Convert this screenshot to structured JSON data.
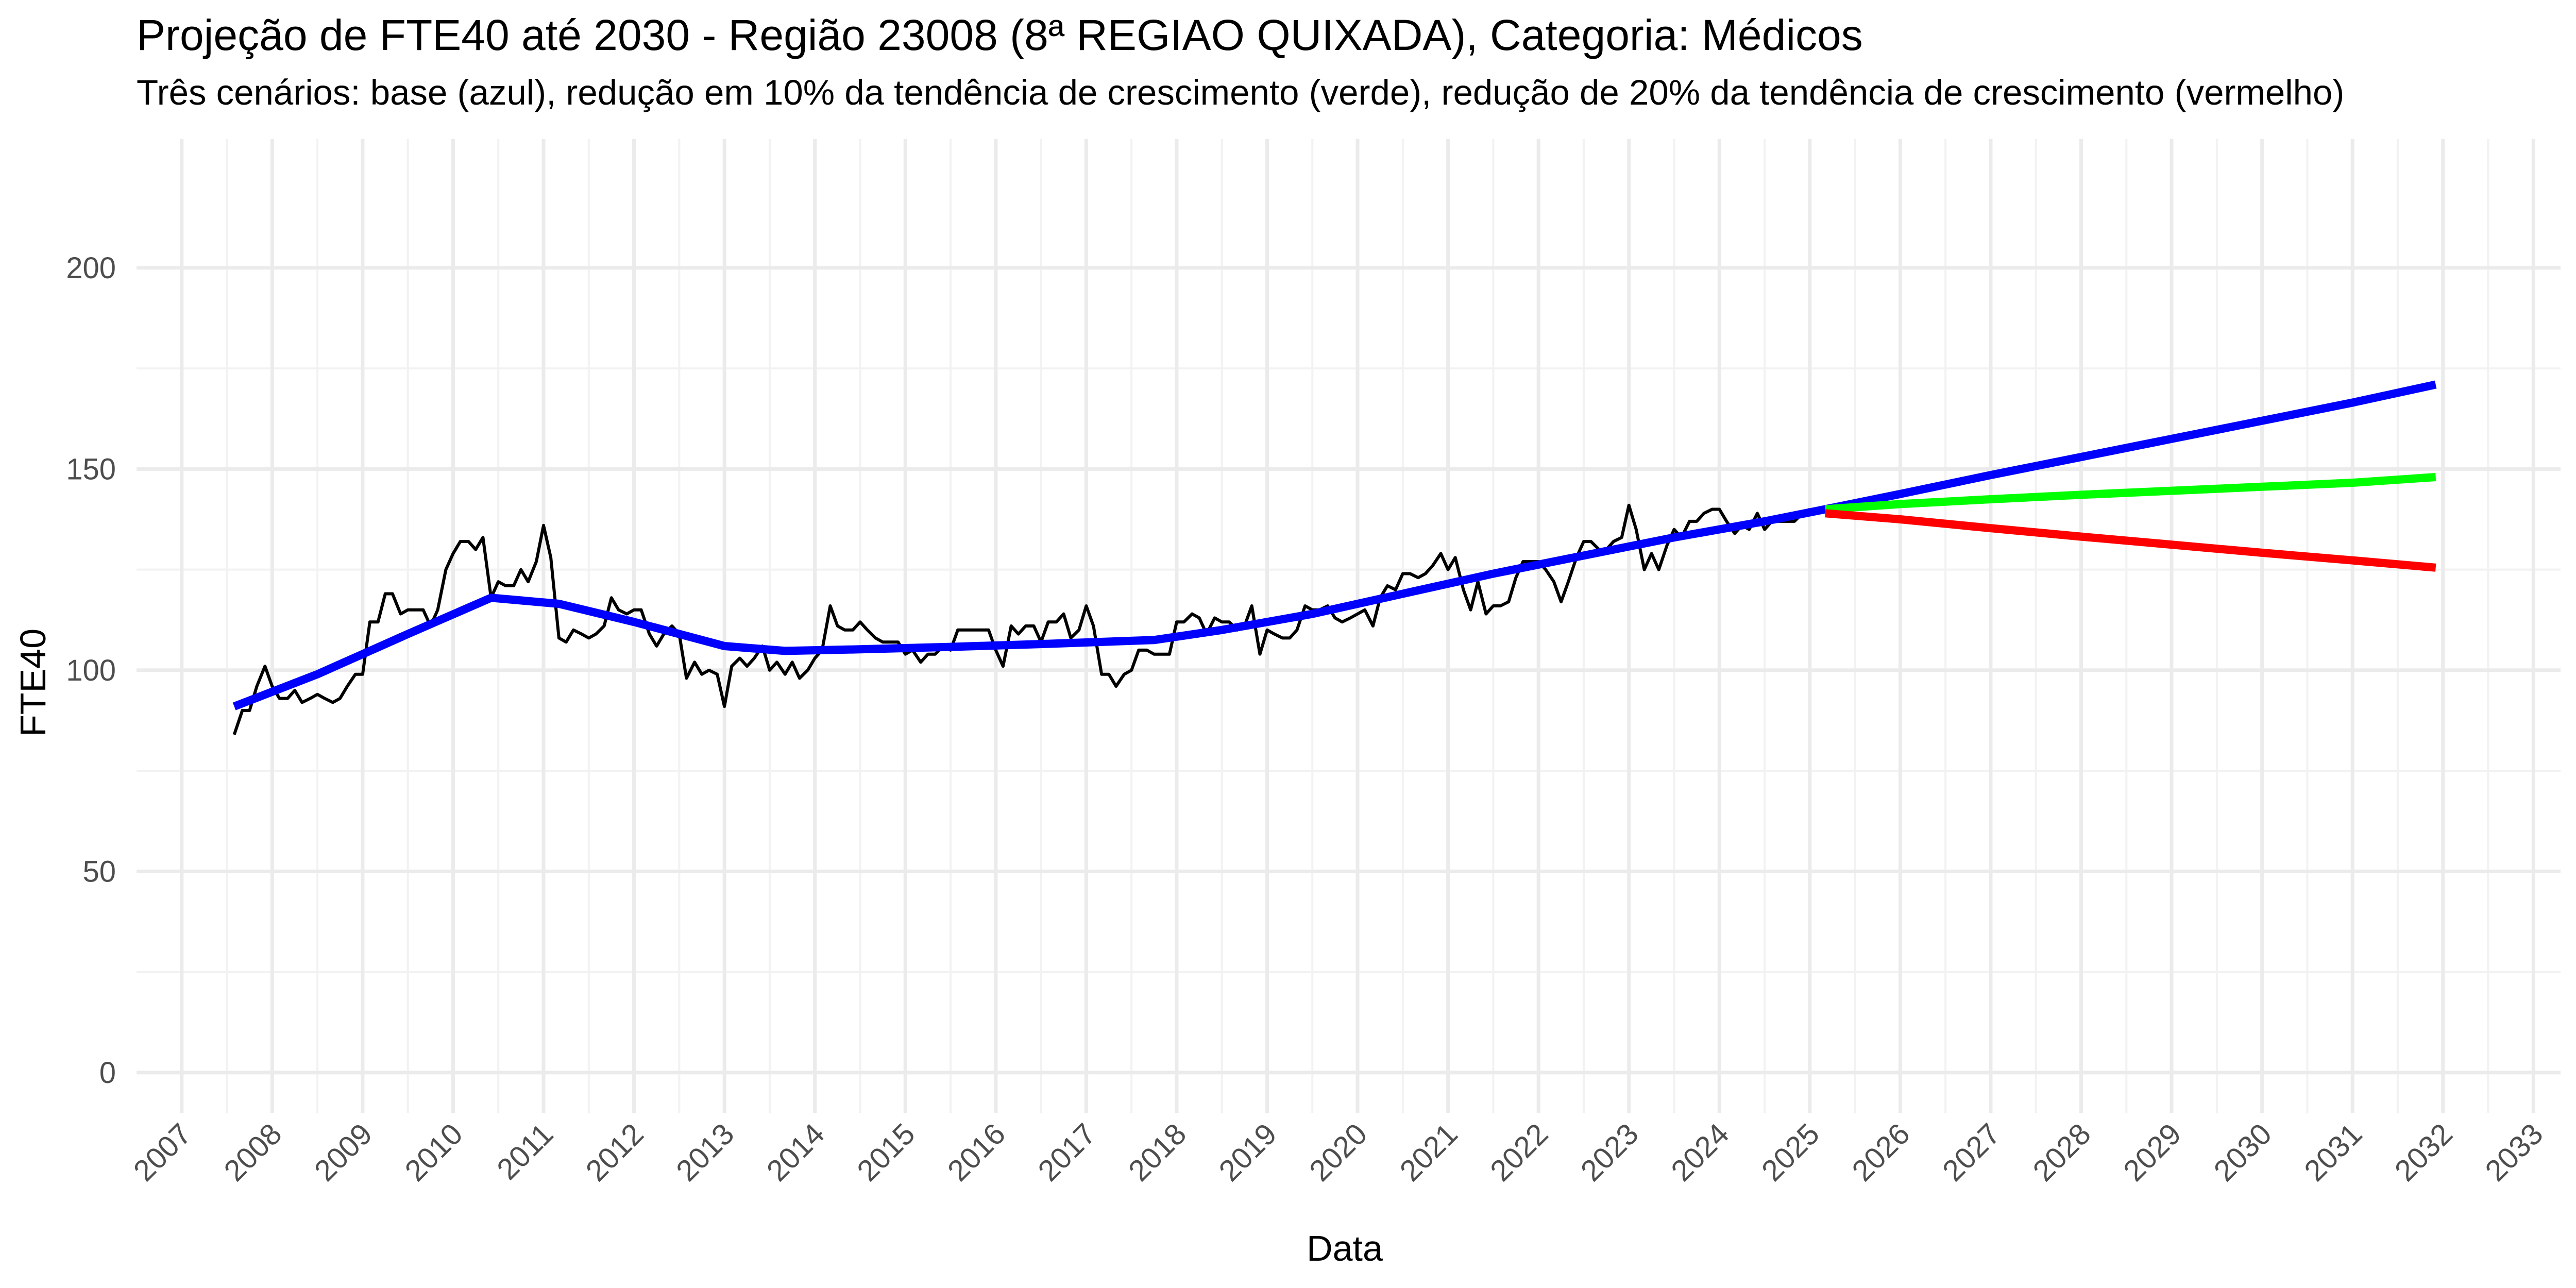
{
  "chart_data": {
    "type": "line",
    "title": "Projeção de FTE40 até 2030 - Região 23008 (8ª REGIAO QUIXADA), Categoria: Médicos",
    "subtitle": "Três cenários: base (azul), redução em 10% da tendência de crescimento (verde), redução de 20% da tendência de crescimento (vermelho)",
    "xlabel": "Data",
    "ylabel": "FTE40",
    "xlim": [
      2006.5,
      2033.3
    ],
    "ylim": [
      -10,
      232
    ],
    "x_ticks": [
      "2007",
      "2008",
      "2009",
      "2010",
      "2011",
      "2012",
      "2013",
      "2014",
      "2015",
      "2016",
      "2017",
      "2018",
      "2019",
      "2020",
      "2021",
      "2022",
      "2023",
      "2024",
      "2025",
      "2026",
      "2027",
      "2028",
      "2029",
      "2030",
      "2031",
      "2032",
      "2033"
    ],
    "y_ticks": [
      0,
      50,
      100,
      150,
      200
    ],
    "grid": true,
    "series": [
      {
        "color": "#000000",
        "points": [
          [
            2007.58,
            84
          ],
          [
            2007.67,
            90
          ],
          [
            2007.75,
            90
          ],
          [
            2007.83,
            96
          ],
          [
            2007.92,
            101
          ],
          [
            2008.0,
            96
          ],
          [
            2008.08,
            93
          ],
          [
            2008.17,
            93
          ],
          [
            2008.25,
            95
          ],
          [
            2008.33,
            92
          ],
          [
            2008.42,
            93
          ],
          [
            2008.5,
            94
          ],
          [
            2008.58,
            93
          ],
          [
            2008.67,
            92
          ],
          [
            2008.75,
            93
          ],
          [
            2008.83,
            96
          ],
          [
            2008.92,
            99
          ],
          [
            2009.0,
            99
          ],
          [
            2009.08,
            112
          ],
          [
            2009.17,
            112
          ],
          [
            2009.25,
            119
          ],
          [
            2009.33,
            119
          ],
          [
            2009.42,
            114
          ],
          [
            2009.5,
            115
          ],
          [
            2009.58,
            115
          ],
          [
            2009.67,
            115
          ],
          [
            2009.75,
            111
          ],
          [
            2009.83,
            115
          ],
          [
            2009.92,
            125
          ],
          [
            2010.0,
            129
          ],
          [
            2010.08,
            132
          ],
          [
            2010.17,
            132
          ],
          [
            2010.25,
            130
          ],
          [
            2010.33,
            133
          ],
          [
            2010.42,
            118
          ],
          [
            2010.5,
            122
          ],
          [
            2010.58,
            121
          ],
          [
            2010.67,
            121
          ],
          [
            2010.75,
            125
          ],
          [
            2010.83,
            122
          ],
          [
            2010.92,
            127
          ],
          [
            2011.0,
            136
          ],
          [
            2011.08,
            128
          ],
          [
            2011.17,
            108
          ],
          [
            2011.25,
            107
          ],
          [
            2011.33,
            110
          ],
          [
            2011.42,
            109
          ],
          [
            2011.5,
            108
          ],
          [
            2011.58,
            109
          ],
          [
            2011.67,
            111
          ],
          [
            2011.75,
            118
          ],
          [
            2011.83,
            115
          ],
          [
            2011.92,
            114
          ],
          [
            2012.0,
            115
          ],
          [
            2012.08,
            115
          ],
          [
            2012.17,
            109
          ],
          [
            2012.25,
            106
          ],
          [
            2012.33,
            109
          ],
          [
            2012.42,
            111
          ],
          [
            2012.5,
            109
          ],
          [
            2012.58,
            98
          ],
          [
            2012.67,
            102
          ],
          [
            2012.75,
            99
          ],
          [
            2012.83,
            100
          ],
          [
            2012.92,
            99
          ],
          [
            2013.0,
            91
          ],
          [
            2013.08,
            101
          ],
          [
            2013.17,
            103
          ],
          [
            2013.25,
            101
          ],
          [
            2013.33,
            103
          ],
          [
            2013.42,
            106
          ],
          [
            2013.5,
            100
          ],
          [
            2013.58,
            102
          ],
          [
            2013.67,
            99
          ],
          [
            2013.75,
            102
          ],
          [
            2013.83,
            98
          ],
          [
            2013.92,
            100
          ],
          [
            2014.0,
            103
          ],
          [
            2014.08,
            105
          ],
          [
            2014.17,
            116
          ],
          [
            2014.25,
            111
          ],
          [
            2014.33,
            110
          ],
          [
            2014.42,
            110
          ],
          [
            2014.5,
            112
          ],
          [
            2014.58,
            110
          ],
          [
            2014.67,
            108
          ],
          [
            2014.75,
            107
          ],
          [
            2014.83,
            107
          ],
          [
            2014.92,
            107
          ],
          [
            2015.0,
            104
          ],
          [
            2015.08,
            105
          ],
          [
            2015.17,
            102
          ],
          [
            2015.25,
            104
          ],
          [
            2015.33,
            104
          ],
          [
            2015.42,
            106
          ],
          [
            2015.5,
            105
          ],
          [
            2015.58,
            110
          ],
          [
            2015.67,
            110
          ],
          [
            2015.75,
            110
          ],
          [
            2015.83,
            110
          ],
          [
            2015.92,
            110
          ],
          [
            2016.0,
            105
          ],
          [
            2016.08,
            101
          ],
          [
            2016.17,
            111
          ],
          [
            2016.25,
            109
          ],
          [
            2016.33,
            111
          ],
          [
            2016.42,
            111
          ],
          [
            2016.5,
            107
          ],
          [
            2016.58,
            112
          ],
          [
            2016.67,
            112
          ],
          [
            2016.75,
            114
          ],
          [
            2016.83,
            108
          ],
          [
            2016.92,
            110
          ],
          [
            2017.0,
            116
          ],
          [
            2017.08,
            111
          ],
          [
            2017.17,
            99
          ],
          [
            2017.25,
            99
          ],
          [
            2017.33,
            96
          ],
          [
            2017.42,
            99
          ],
          [
            2017.5,
            100
          ],
          [
            2017.58,
            105
          ],
          [
            2017.67,
            105
          ],
          [
            2017.75,
            104
          ],
          [
            2017.83,
            104
          ],
          [
            2017.92,
            104
          ],
          [
            2018.0,
            112
          ],
          [
            2018.08,
            112
          ],
          [
            2018.17,
            114
          ],
          [
            2018.25,
            113
          ],
          [
            2018.33,
            109
          ],
          [
            2018.42,
            113
          ],
          [
            2018.5,
            112
          ],
          [
            2018.58,
            112
          ],
          [
            2018.67,
            110
          ],
          [
            2018.75,
            111
          ],
          [
            2018.83,
            116
          ],
          [
            2018.92,
            104
          ],
          [
            2019.0,
            110
          ],
          [
            2019.08,
            109
          ],
          [
            2019.17,
            108
          ],
          [
            2019.25,
            108
          ],
          [
            2019.33,
            110
          ],
          [
            2019.42,
            116
          ],
          [
            2019.5,
            115
          ],
          [
            2019.58,
            115
          ],
          [
            2019.67,
            116
          ],
          [
            2019.75,
            113
          ],
          [
            2019.83,
            112
          ],
          [
            2019.92,
            113
          ],
          [
            2020.0,
            114
          ],
          [
            2020.08,
            115
          ],
          [
            2020.17,
            111
          ],
          [
            2020.25,
            118
          ],
          [
            2020.33,
            121
          ],
          [
            2020.42,
            120
          ],
          [
            2020.5,
            124
          ],
          [
            2020.58,
            124
          ],
          [
            2020.67,
            123
          ],
          [
            2020.75,
            124
          ],
          [
            2020.83,
            126
          ],
          [
            2020.92,
            129
          ],
          [
            2021.0,
            125
          ],
          [
            2021.08,
            128
          ],
          [
            2021.17,
            120
          ],
          [
            2021.25,
            115
          ],
          [
            2021.33,
            122
          ],
          [
            2021.42,
            114
          ],
          [
            2021.5,
            116
          ],
          [
            2021.58,
            116
          ],
          [
            2021.67,
            117
          ],
          [
            2021.75,
            123
          ],
          [
            2021.83,
            127
          ],
          [
            2021.92,
            127
          ],
          [
            2022.0,
            127
          ],
          [
            2022.08,
            125
          ],
          [
            2022.17,
            122
          ],
          [
            2022.25,
            117
          ],
          [
            2022.33,
            122
          ],
          [
            2022.42,
            128
          ],
          [
            2022.5,
            132
          ],
          [
            2022.58,
            132
          ],
          [
            2022.67,
            130
          ],
          [
            2022.75,
            130
          ],
          [
            2022.83,
            132
          ],
          [
            2022.92,
            133
          ],
          [
            2023.0,
            141
          ],
          [
            2023.08,
            135
          ],
          [
            2023.17,
            125
          ],
          [
            2023.25,
            129
          ],
          [
            2023.33,
            125
          ],
          [
            2023.42,
            131
          ],
          [
            2023.5,
            135
          ],
          [
            2023.58,
            133
          ],
          [
            2023.67,
            137
          ],
          [
            2023.75,
            137
          ],
          [
            2023.83,
            139
          ],
          [
            2023.92,
            140
          ],
          [
            2024.0,
            140
          ],
          [
            2024.08,
            137
          ],
          [
            2024.17,
            134
          ],
          [
            2024.25,
            136
          ],
          [
            2024.33,
            135
          ],
          [
            2024.42,
            139
          ],
          [
            2024.5,
            135
          ],
          [
            2024.58,
            137
          ],
          [
            2024.67,
            137
          ],
          [
            2024.75,
            137
          ],
          [
            2024.83,
            137
          ],
          [
            2024.92,
            139
          ],
          [
            2025.0,
            140
          ]
        ]
      },
      {
        "color": "#0000ff",
        "points": [
          [
            2007.58,
            91
          ],
          [
            2008.5,
            99
          ],
          [
            2009.5,
            109
          ],
          [
            2010.42,
            118
          ],
          [
            2011.17,
            116.5
          ],
          [
            2012.0,
            112
          ],
          [
            2013.0,
            106
          ],
          [
            2013.67,
            104.8
          ],
          [
            2014.5,
            105.2
          ],
          [
            2015.5,
            105.8
          ],
          [
            2016.5,
            106.5
          ],
          [
            2017.75,
            107.5
          ],
          [
            2018.5,
            110
          ],
          [
            2019.5,
            114
          ],
          [
            2020.5,
            119
          ],
          [
            2021.5,
            124
          ],
          [
            2022.5,
            128.5
          ],
          [
            2023.5,
            133
          ],
          [
            2024.5,
            137
          ],
          [
            2025.17,
            140
          ],
          [
            2026.0,
            143.8
          ],
          [
            2027.0,
            148.5
          ],
          [
            2028.0,
            153
          ],
          [
            2029.0,
            157.5
          ],
          [
            2030.0,
            162
          ],
          [
            2031.0,
            166.5
          ],
          [
            2031.92,
            171
          ]
        ]
      },
      {
        "color": "#00ff00",
        "points": [
          [
            2025.17,
            140
          ],
          [
            2026.0,
            141.3
          ],
          [
            2027.0,
            142.5
          ],
          [
            2028.0,
            143.6
          ],
          [
            2029.0,
            144.6
          ],
          [
            2030.0,
            145.6
          ],
          [
            2031.0,
            146.6
          ],
          [
            2031.92,
            148
          ]
        ]
      },
      {
        "color": "#ff0000",
        "points": [
          [
            2025.17,
            139
          ],
          [
            2026.0,
            137.5
          ],
          [
            2027.0,
            135.3
          ],
          [
            2028.0,
            133.2
          ],
          [
            2029.0,
            131.2
          ],
          [
            2030.0,
            129.2
          ],
          [
            2031.0,
            127.3
          ],
          [
            2031.92,
            125.5
          ]
        ]
      }
    ]
  }
}
